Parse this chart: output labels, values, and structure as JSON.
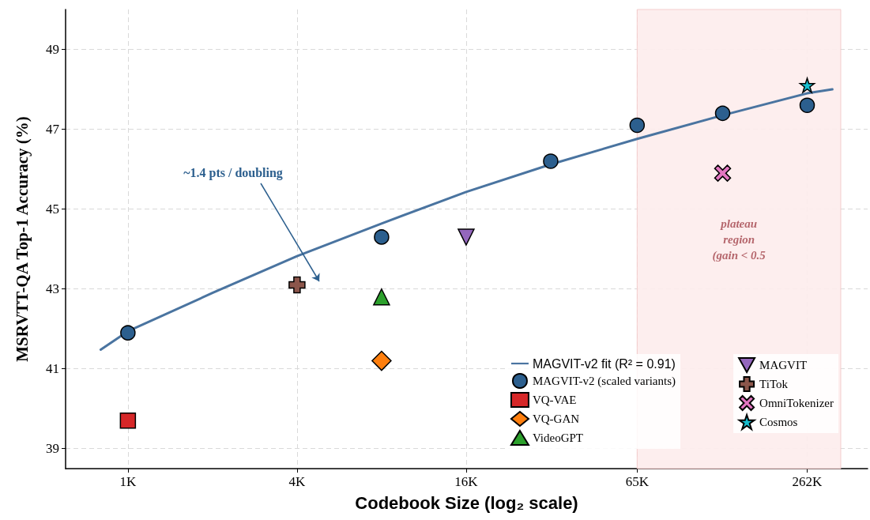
{
  "chart_data": {
    "type": "scatter",
    "xlabel": "Codebook Size (log₂ scale)",
    "ylabel": "MSRVTT-QA Top-1 Accuracy (%)",
    "log": "x",
    "grid": true,
    "legend": "bottom right",
    "xlim": [
      0.6,
      430
    ],
    "ylim": [
      38.5,
      50
    ],
    "xticks": [
      {
        "value": 1,
        "label": "1K"
      },
      {
        "value": 4,
        "label": "4K"
      },
      {
        "value": 16,
        "label": "16K"
      },
      {
        "value": 65,
        "label": "65K"
      },
      {
        "value": 262,
        "label": "262K"
      }
    ],
    "yticks": [
      39,
      41,
      43,
      45,
      47,
      49
    ],
    "series": [
      {
        "name": "MAGVIT-v2 fit (R² = 0.91)",
        "type": "line",
        "line_style": "solid",
        "marker": "none",
        "color": "#4a74a0",
        "x": [
          0.8,
          1,
          2,
          4,
          8,
          16,
          32,
          65,
          131,
          262,
          322
        ],
        "values": [
          41.48,
          41.94,
          42.9,
          43.82,
          44.64,
          45.43,
          46.12,
          46.76,
          47.35,
          47.9,
          48.0
        ]
      },
      {
        "name": "MAGVIT-v2 (scaled variants)",
        "marker": "circle",
        "color": "#2c5f8e",
        "x": [
          1,
          8,
          32,
          65,
          131,
          262
        ],
        "values": [
          41.9,
          44.3,
          46.2,
          47.1,
          47.4,
          47.6
        ]
      },
      {
        "name": "VQ-VAE",
        "marker": "square",
        "color": "#d62728",
        "x": [
          1
        ],
        "values": [
          39.7
        ]
      },
      {
        "name": "VQ-GAN",
        "marker": "diamond",
        "color": "#ff7f0e",
        "x": [
          8
        ],
        "values": [
          41.2
        ]
      },
      {
        "name": "VideoGPT",
        "marker": "triangle",
        "color": "#2ca02c",
        "x": [
          8
        ],
        "values": [
          42.8
        ]
      },
      {
        "name": "MAGVIT",
        "marker": "triangle-down",
        "color": "#9467bd",
        "x": [
          16
        ],
        "values": [
          44.3
        ]
      },
      {
        "name": "TiTok",
        "marker": "plus",
        "color": "#8c564b",
        "x": [
          4
        ],
        "values": [
          43.1
        ]
      },
      {
        "name": "OmniTokenizer",
        "marker": "x",
        "color": "#e377c2",
        "x": [
          131
        ],
        "values": [
          45.9
        ]
      },
      {
        "name": "Cosmos",
        "marker": "star",
        "color": "#17becf",
        "x": [
          262
        ],
        "values": [
          48.1
        ]
      }
    ],
    "bands": [
      {
        "axis": "x",
        "from": 65,
        "to": 345,
        "label": "plateau\nregion\n(gain < 0.5",
        "color": "#fdecec"
      }
    ],
    "annotations": [
      "~1.4 pts / doubling"
    ]
  }
}
